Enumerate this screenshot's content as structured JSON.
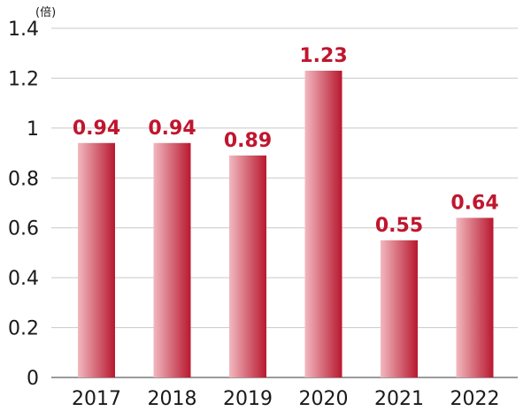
{
  "chart_data": {
    "type": "bar",
    "unit": "(倍)",
    "categories": [
      "2017",
      "2018",
      "2019",
      "2020",
      "2021",
      "2022"
    ],
    "values": [
      0.94,
      0.94,
      0.89,
      1.23,
      0.55,
      0.64
    ],
    "data_labels": [
      "0.94",
      "0.94",
      "0.89",
      "1.23",
      "0.55",
      "0.64"
    ],
    "y_ticks": [
      "0",
      "0.2",
      "0.4",
      "0.6",
      "0.8",
      "1",
      "1.2",
      "1.4"
    ],
    "ylim": [
      0,
      1.4
    ],
    "grid": true,
    "bar_color_light": "#f2b8bf",
    "bar_color_dark": "#b8182f",
    "label_color": "#c0162e"
  }
}
